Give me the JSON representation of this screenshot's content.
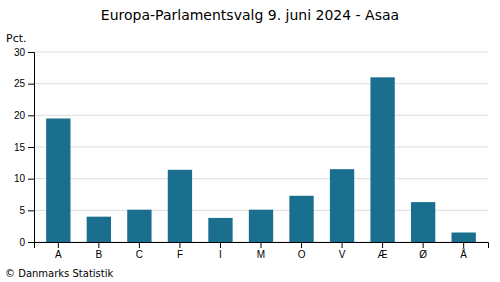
{
  "chart_data": {
    "type": "bar",
    "title": "Europa-Parlamentsvalg 9. juni 2024 - Asaa",
    "categories": [
      "A",
      "B",
      "C",
      "F",
      "I",
      "M",
      "O",
      "V",
      "Æ",
      "Ø",
      "Å"
    ],
    "values": [
      19.5,
      4.0,
      5.1,
      11.4,
      3.8,
      5.1,
      7.3,
      11.5,
      26.0,
      6.3,
      1.5
    ],
    "color": "#1a6e8e",
    "ylim": [
      0,
      30
    ],
    "yticks": [
      0,
      5,
      10,
      15,
      20,
      25,
      30
    ],
    "ylabel": "Pct.",
    "footer": "© Danmarks Statistik",
    "grid": true
  }
}
